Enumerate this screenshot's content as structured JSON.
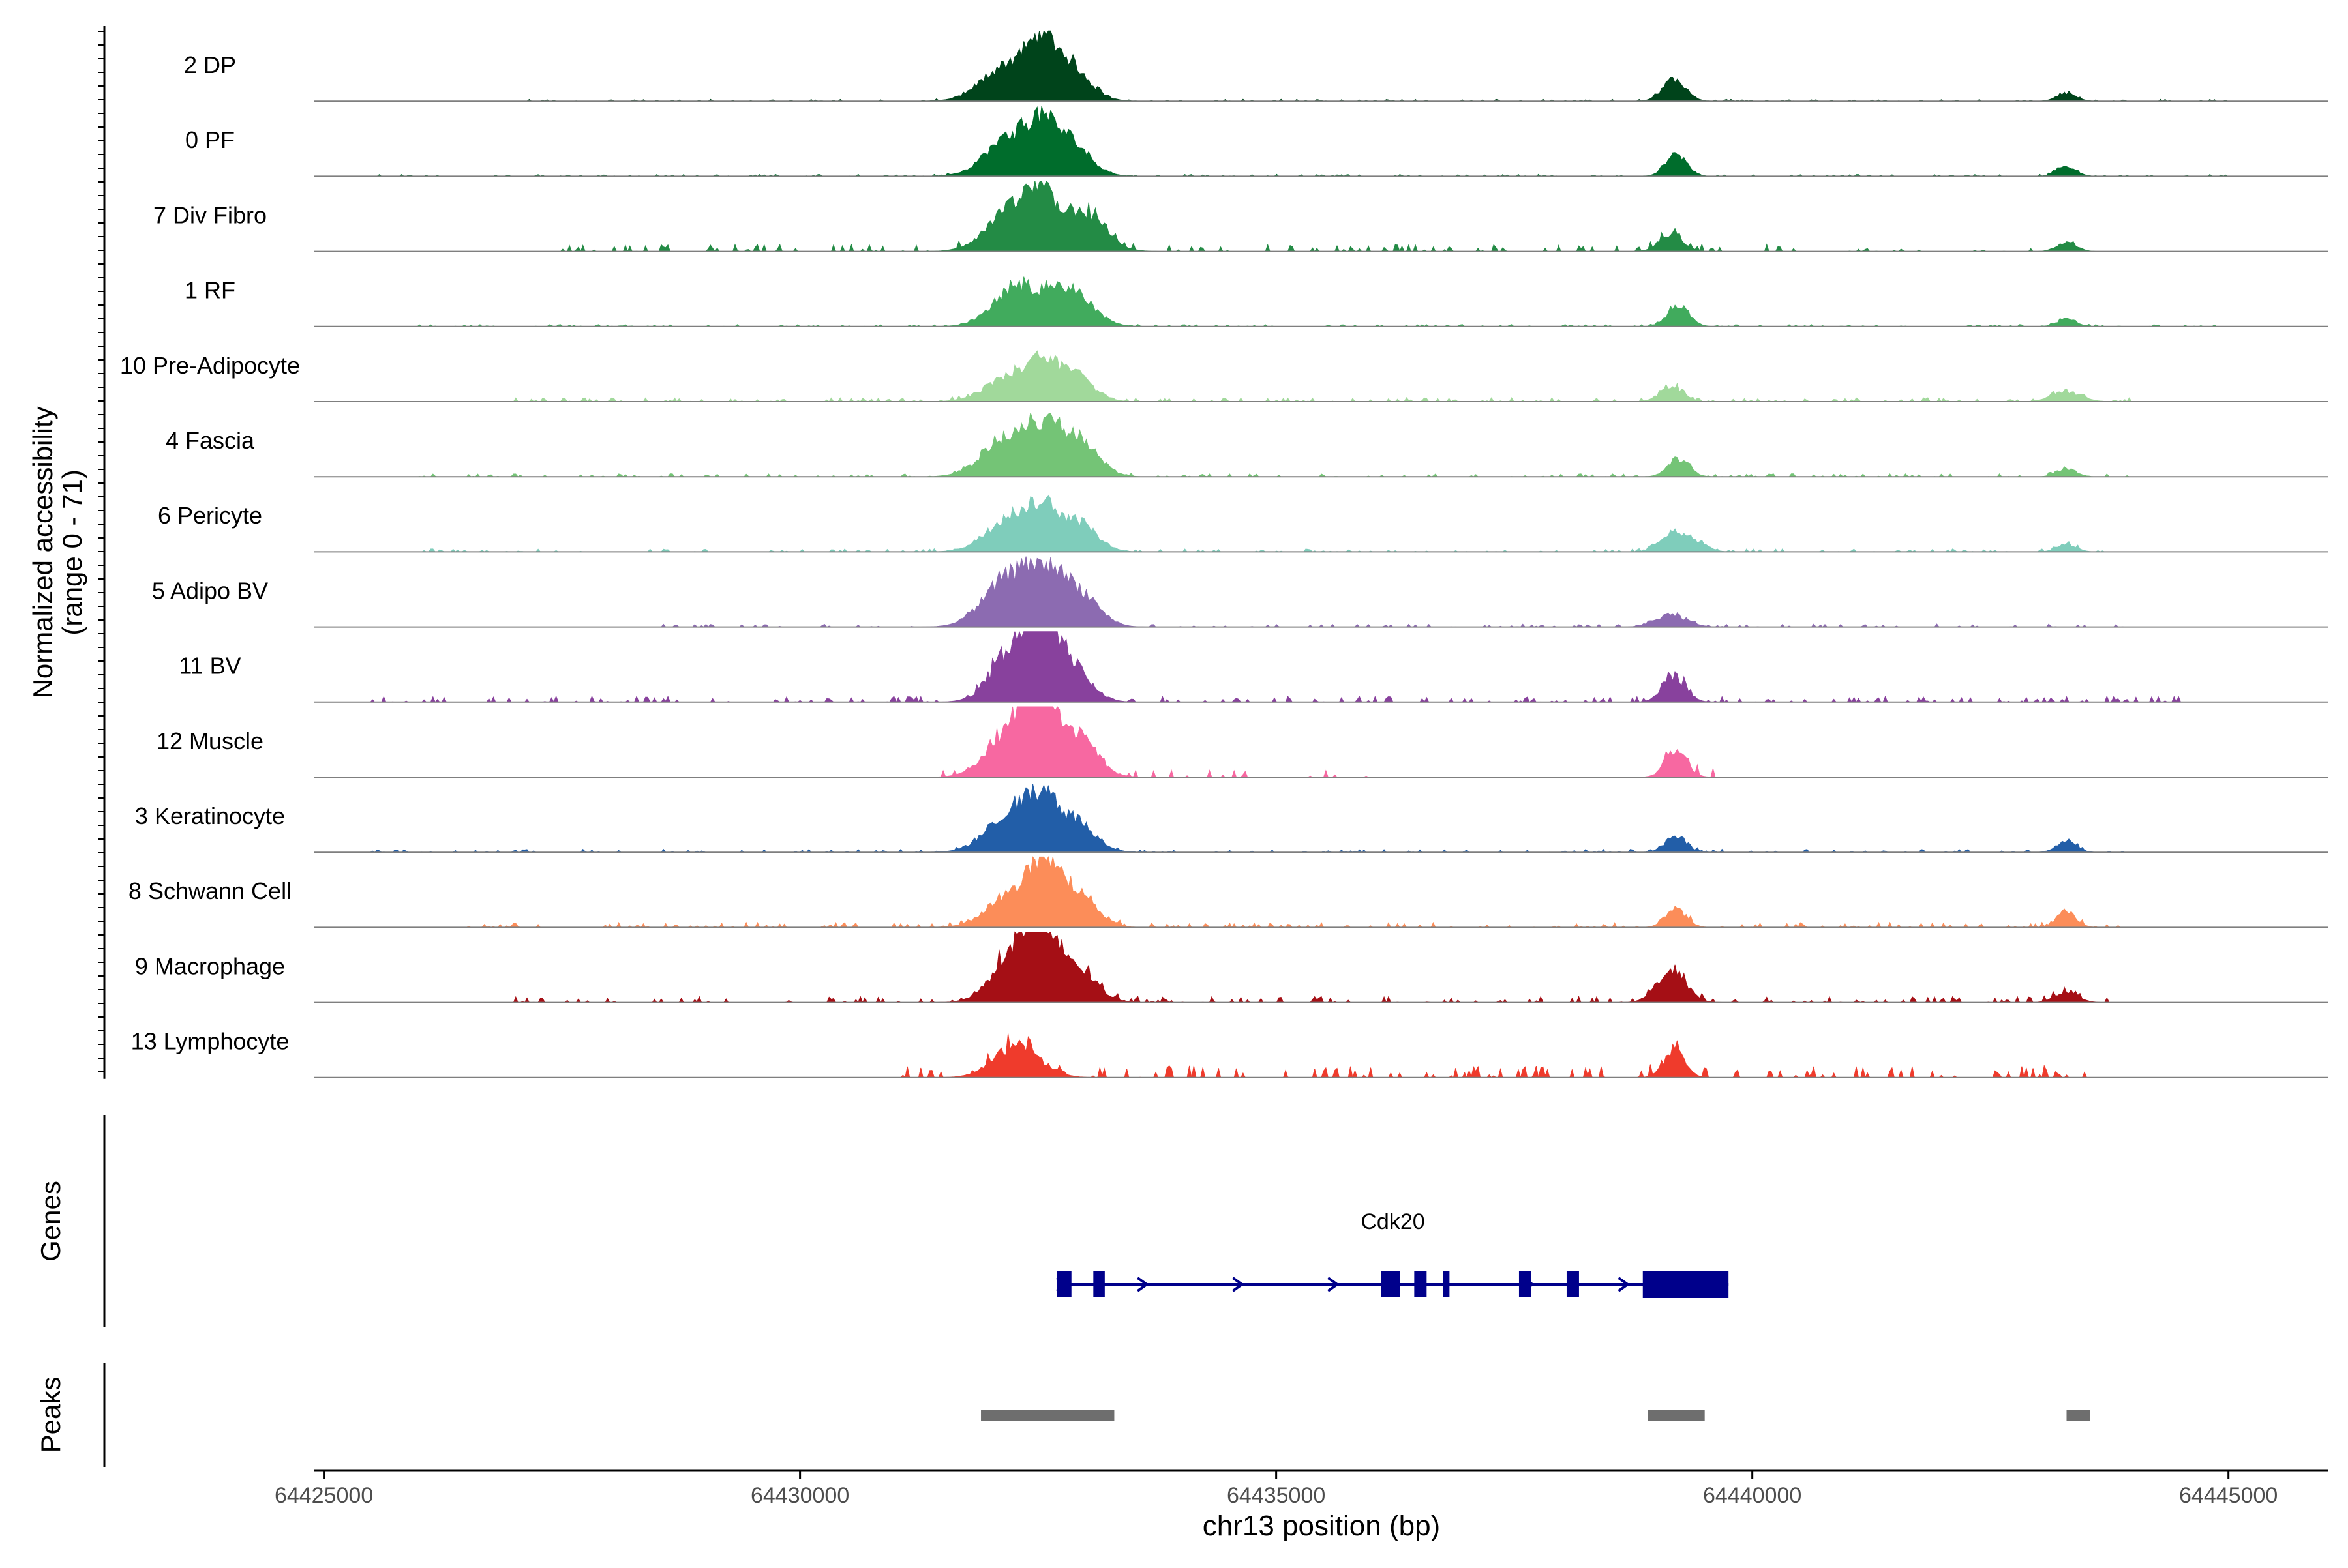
{
  "chart_data": {
    "type": "area",
    "title": "",
    "chromosome": "chr13",
    "xlabel": "chr13 position (bp)",
    "xlim": [
      64424900,
      64446050
    ],
    "x_ticks": [
      64425000,
      64430000,
      64435000,
      64440000,
      64445000
    ],
    "x_tick_labels": [
      "64425000",
      "64430000",
      "64435000",
      "64440000",
      "64445000"
    ],
    "ylabel_line1": "Normalized accessibility",
    "ylabel_line2": "(range 0 - 71)",
    "y_range": [
      0,
      71
    ],
    "tracks": [
      {
        "name": "2 DP",
        "color": "#00441b",
        "peaks": [
          [
            64432180,
            260,
            36
          ],
          [
            64432530,
            160,
            34
          ],
          [
            64432800,
            220,
            36
          ],
          [
            64439180,
            120,
            22
          ],
          [
            64443300,
            100,
            8
          ]
        ],
        "noise": [
          [
            64427000,
            64445000,
            2
          ]
        ]
      },
      {
        "name": "0 PF",
        "color": "#006d2c",
        "peaks": [
          [
            64432200,
            250,
            38
          ],
          [
            64432520,
            150,
            33
          ],
          [
            64432820,
            210,
            35
          ],
          [
            64439200,
            110,
            22
          ],
          [
            64443300,
            100,
            10
          ]
        ],
        "noise": [
          [
            64425500,
            64445000,
            2
          ]
        ]
      },
      {
        "name": "7 Div Fibro",
        "color": "#238b45",
        "peaks": [
          [
            64432230,
            260,
            40
          ],
          [
            64432520,
            160,
            36
          ],
          [
            64432950,
            230,
            40
          ],
          [
            64439150,
            120,
            18
          ],
          [
            64443300,
            100,
            10
          ]
        ],
        "noise": [
          [
            64427500,
            64440500,
            7
          ],
          [
            64441000,
            64443500,
            3
          ]
        ]
      },
      {
        "name": "1 RF",
        "color": "#41ab5d",
        "peaks": [
          [
            64432300,
            250,
            40
          ],
          [
            64432850,
            220,
            34
          ],
          [
            64439220,
            110,
            22
          ],
          [
            64443300,
            100,
            7
          ]
        ],
        "noise": [
          [
            64426000,
            64445000,
            2
          ]
        ]
      },
      {
        "name": "10 Pre-Adipocyte",
        "color": "#a1d99b",
        "peaks": [
          [
            64432230,
            260,
            26
          ],
          [
            64432520,
            150,
            22
          ],
          [
            64432850,
            200,
            30
          ],
          [
            64439150,
            120,
            14
          ],
          [
            64443300,
            150,
            10
          ]
        ],
        "noise": [
          [
            64427000,
            64444000,
            4
          ]
        ]
      },
      {
        "name": "4 Fascia",
        "color": "#74c476",
        "peaks": [
          [
            64432200,
            260,
            42
          ],
          [
            64432560,
            150,
            30
          ],
          [
            64432900,
            210,
            38
          ],
          [
            64439220,
            110,
            18
          ],
          [
            64443300,
            100,
            8
          ]
        ],
        "noise": [
          [
            64426000,
            64444000,
            3
          ]
        ]
      },
      {
        "name": "6 Pericyte",
        "color": "#7fcdbb",
        "peaks": [
          [
            64432250,
            260,
            36
          ],
          [
            64432550,
            150,
            26
          ],
          [
            64432900,
            200,
            30
          ],
          [
            64439150,
            120,
            18
          ],
          [
            64439400,
            120,
            10
          ],
          [
            64443300,
            100,
            8
          ]
        ],
        "noise": [
          [
            64426000,
            64444000,
            3
          ]
        ]
      },
      {
        "name": "5 Adipo BV",
        "color": "#8c6bb1",
        "peaks": [
          [
            64432200,
            260,
            48
          ],
          [
            64432600,
            200,
            40
          ],
          [
            64432950,
            200,
            30
          ],
          [
            64439150,
            160,
            12
          ]
        ],
        "noise": [
          [
            64428500,
            64444000,
            3
          ]
        ]
      },
      {
        "name": "11 BV",
        "color": "#88419d",
        "peaks": [
          [
            64432300,
            240,
            62
          ],
          [
            64432560,
            150,
            55
          ],
          [
            64432850,
            200,
            32
          ],
          [
            64439180,
            120,
            26
          ]
        ],
        "noise": [
          [
            64425500,
            64444500,
            6
          ]
        ]
      },
      {
        "name": "12 Muscle",
        "color": "#f768a1",
        "peaks": [
          [
            64432250,
            250,
            50
          ],
          [
            64432520,
            150,
            62
          ],
          [
            64432900,
            200,
            42
          ],
          [
            64439200,
            110,
            28
          ]
        ],
        "noise": [
          [
            64431500,
            64436000,
            7
          ],
          [
            64439000,
            64439600,
            10
          ]
        ]
      },
      {
        "name": "3 Keratinocyte",
        "color": "#225ea8",
        "peaks": [
          [
            64432250,
            260,
            42
          ],
          [
            64432550,
            150,
            36
          ],
          [
            64432900,
            200,
            30
          ],
          [
            64439200,
            110,
            16
          ],
          [
            64443300,
            100,
            12
          ]
        ],
        "noise": [
          [
            64425500,
            64444000,
            3
          ]
        ]
      },
      {
        "name": "8 Schwann Cell",
        "color": "#fc8d59",
        "peaks": [
          [
            64432250,
            260,
            32
          ],
          [
            64432560,
            150,
            50
          ],
          [
            64432900,
            200,
            36
          ],
          [
            64439200,
            110,
            18
          ],
          [
            64443300,
            100,
            16
          ]
        ],
        "noise": [
          [
            64426500,
            64444000,
            5
          ]
        ]
      },
      {
        "name": "9 Macrophage",
        "color": "#a50f15",
        "peaks": [
          [
            64432300,
            240,
            58
          ],
          [
            64432560,
            150,
            40
          ],
          [
            64432900,
            200,
            34
          ],
          [
            64439150,
            150,
            32
          ],
          [
            64443300,
            120,
            10
          ]
        ],
        "noise": [
          [
            64427000,
            64444000,
            6
          ]
        ]
      },
      {
        "name": "13 Lymphocyte",
        "color": "#ef3b2c",
        "peaks": [
          [
            64432280,
            240,
            32
          ],
          [
            64439180,
            110,
            26
          ]
        ],
        "noise": [
          [
            64431000,
            64443500,
            12
          ]
        ]
      }
    ],
    "genes": [
      {
        "name": "Cdk20",
        "start": 64432700,
        "end": 64439750,
        "strand": "+",
        "color": "#00008b",
        "exons": [
          [
            64432700,
            64432850
          ],
          [
            64433080,
            64433200
          ],
          [
            64436100,
            64436300
          ],
          [
            64436450,
            64436580
          ],
          [
            64436750,
            64436820
          ],
          [
            64437550,
            64437680
          ],
          [
            64438050,
            64438180
          ],
          [
            64438850,
            64439750
          ]
        ],
        "arrows": [
          64432750,
          64433600,
          64434600,
          64435600,
          64437650,
          64438650
        ]
      }
    ],
    "peaks": [
      [
        64431900,
        64433300
      ],
      [
        64438900,
        64439500
      ],
      [
        64443300,
        64443550
      ]
    ],
    "peak_color": "#6e6e6e",
    "panel_labels": {
      "genes": "Genes",
      "peaks": "Peaks"
    }
  }
}
